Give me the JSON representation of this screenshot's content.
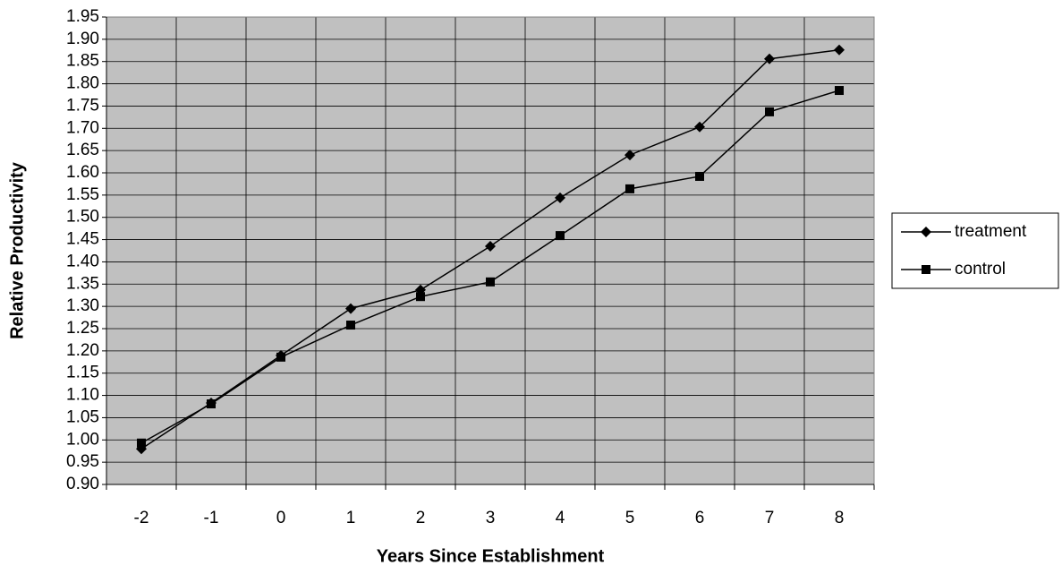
{
  "chart_data": {
    "type": "line",
    "x_label": "Years Since Establishment",
    "y_label": "Relative Productivity",
    "categories": [
      "-2",
      "-1",
      "0",
      "1",
      "2",
      "3",
      "4",
      "5",
      "6",
      "7",
      "8"
    ],
    "series": [
      {
        "name": "treatment",
        "color": "#000000",
        "marker": "diamond",
        "values": [
          0.98,
          1.083,
          1.19,
          1.295,
          1.337,
          1.435,
          1.544,
          1.64,
          1.703,
          1.856,
          1.876
        ]
      },
      {
        "name": "control",
        "color": "#000000",
        "marker": "square",
        "values": [
          0.993,
          1.081,
          1.186,
          1.258,
          1.322,
          1.355,
          1.459,
          1.564,
          1.592,
          1.737,
          1.785
        ]
      }
    ],
    "ylim": [
      0.9,
      1.95
    ],
    "yticks": [
      {
        "value": 0.9,
        "label": "0.90"
      },
      0.95,
      {
        "value": 1.0,
        "label": "1.00"
      },
      1.05,
      {
        "value": 1.1,
        "label": "1.10"
      },
      1.15,
      {
        "value": 1.2,
        "label": "1.20"
      },
      1.25,
      {
        "value": 1.3,
        "label": "1.30"
      },
      1.35,
      {
        "value": 1.4,
        "label": "1.40"
      },
      1.45,
      {
        "value": 1.5,
        "label": "1.50"
      },
      1.55,
      {
        "value": 1.6,
        "label": "1.60"
      },
      1.65,
      {
        "value": 1.7,
        "label": "1.70"
      },
      1.75,
      {
        "value": 1.8,
        "label": "1.80"
      },
      1.85,
      {
        "value": 1.9,
        "label": "1.90"
      },
      1.95
    ],
    "grid": true,
    "plot_background": "#c0c0c0",
    "legend": "right"
  }
}
